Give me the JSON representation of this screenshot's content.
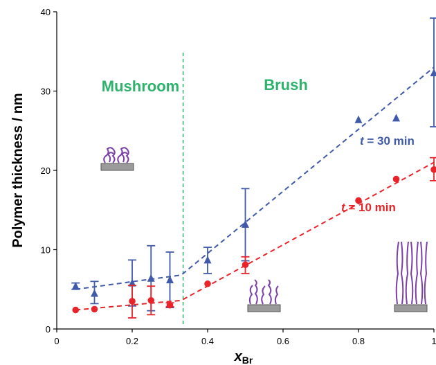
{
  "chart_data": {
    "type": "scatter",
    "xlabel": "x",
    "xlabel_sub": "Br",
    "ylabel": "Polymer thickness / nm",
    "xlim": [
      0,
      1
    ],
    "ylim": [
      0,
      40
    ],
    "x_ticks": [
      0,
      0.2,
      0.4,
      0.6,
      0.8,
      1
    ],
    "x_tick_labels": [
      "0",
      "0.2",
      "0.4",
      "0.6",
      "0.8",
      "1"
    ],
    "y_ticks": [
      0,
      10,
      20,
      30,
      40
    ],
    "y_tick_labels": [
      "0",
      "10",
      "20",
      "30",
      "40"
    ],
    "grid": false,
    "regions": [
      {
        "label": "Mushroom",
        "color": "#2db36b"
      },
      {
        "label": "Brush",
        "color": "#2db36b"
      }
    ],
    "boundary_x": 0.335,
    "series": [
      {
        "label_prefix": "t",
        "label_suffix": " = 30 min",
        "color": "#3f5aa8",
        "marker": "triangle",
        "x": [
          0.05,
          0.1,
          0.2,
          0.25,
          0.3,
          0.4,
          0.5,
          0.8,
          0.9,
          1.0
        ],
        "y": [
          5.4,
          4.5,
          5.8,
          6.4,
          6.2,
          8.7,
          13.2,
          26.4,
          26.6,
          32.3
        ],
        "yerr_low": [
          5.0,
          3.2,
          2.9,
          2.3,
          2.7,
          7.0,
          8.6,
          null,
          null,
          25.5
        ],
        "yerr_high": [
          5.8,
          6.0,
          8.7,
          10.5,
          9.7,
          10.3,
          17.7,
          null,
          null,
          39.2
        ],
        "trend": [
          [
            0.05,
            5.0
          ],
          [
            0.33,
            6.8
          ],
          [
            1.0,
            33.0
          ]
        ]
      },
      {
        "label_prefix": "t",
        "label_suffix": " = 10 min",
        "color": "#e8242a",
        "marker": "circle",
        "x": [
          0.05,
          0.1,
          0.2,
          0.25,
          0.3,
          0.4,
          0.5,
          0.8,
          0.9,
          1.0
        ],
        "y": [
          2.4,
          2.5,
          3.5,
          3.6,
          3.0,
          5.7,
          8.1,
          16.2,
          18.9,
          20.1
        ],
        "yerr_low": [
          null,
          null,
          1.4,
          1.8,
          2.8,
          null,
          7.0,
          null,
          null,
          18.7
        ],
        "yerr_high": [
          null,
          null,
          5.5,
          5.4,
          3.3,
          null,
          9.1,
          null,
          null,
          21.6
        ],
        "trend": [
          [
            0.05,
            2.4
          ],
          [
            0.33,
            3.6
          ],
          [
            1.0,
            21.0
          ]
        ]
      }
    ]
  }
}
